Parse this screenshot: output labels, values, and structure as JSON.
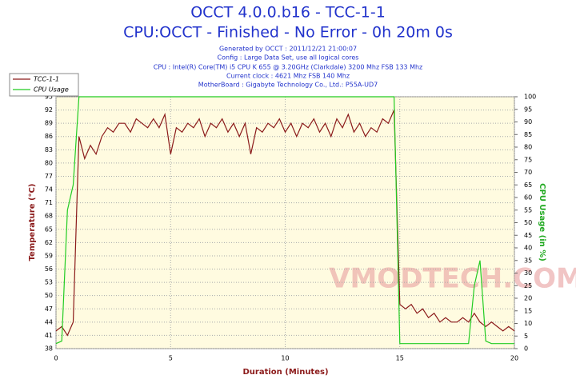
{
  "chart_data": {
    "type": "line",
    "title": "OCCT 4.0.0.b16 - TCC-1-1",
    "subtitle": "CPU:OCCT - Finished - No Error - 0h 20m 0s",
    "info": [
      "Generated by OCCT : 2011/12/21 21:00:07",
      "Config : Large Data Set, use all logical cores",
      "CPU : Intel(R) Core(TM) i5 CPU K 655 @ 3.20GHz (Clarkdale) 3200 Mhz FSB 133 Mhz",
      "Current clock : 4621 Mhz FSB 140 Mhz",
      "MotherBoard : Gigabyte Technology Co., Ltd.: P55A-UD7"
    ],
    "watermark": "VMODTECH.COM",
    "xlabel": "Duration (Minutes)",
    "ylabel": "Temperature (°C)",
    "y2label": "CPU Usage (in %)",
    "x": [
      0,
      0.25,
      0.5,
      0.75,
      1,
      1.25,
      1.5,
      1.75,
      2,
      2.25,
      2.5,
      2.75,
      3,
      3.25,
      3.5,
      3.75,
      4,
      4.25,
      4.5,
      4.75,
      5,
      5.25,
      5.5,
      5.75,
      6,
      6.25,
      6.5,
      6.75,
      7,
      7.25,
      7.5,
      7.75,
      8,
      8.25,
      8.5,
      8.75,
      9,
      9.25,
      9.5,
      9.75,
      10,
      10.25,
      10.5,
      10.75,
      11,
      11.25,
      11.5,
      11.75,
      12,
      12.25,
      12.5,
      12.75,
      13,
      13.25,
      13.5,
      13.75,
      14,
      14.25,
      14.5,
      14.75,
      15,
      15.25,
      15.5,
      15.75,
      16,
      16.25,
      16.5,
      16.75,
      17,
      17.25,
      17.5,
      17.75,
      18,
      18.25,
      18.5,
      18.75,
      19,
      19.25,
      19.5,
      19.75,
      20
    ],
    "series": [
      {
        "name": "TCC-1-1",
        "color": "#8b1a1a",
        "values": [
          42,
          43,
          41,
          44,
          86,
          81,
          84,
          82,
          86,
          88,
          87,
          89,
          89,
          87,
          90,
          89,
          88,
          90,
          88,
          91,
          82,
          88,
          87,
          89,
          88,
          90,
          86,
          89,
          88,
          90,
          87,
          89,
          86,
          89,
          82,
          88,
          87,
          89,
          88,
          90,
          87,
          89,
          86,
          89,
          88,
          90,
          87,
          89,
          86,
          90,
          88,
          91,
          87,
          89,
          86,
          88,
          87,
          90,
          89,
          92,
          48,
          47,
          48,
          46,
          47,
          45,
          46,
          44,
          45,
          44,
          44,
          45,
          44,
          46,
          44,
          43,
          44,
          43,
          42,
          43,
          42
        ]
      },
      {
        "name": "CPU Usage",
        "color": "#22cc22",
        "axis": "y2",
        "values": [
          2,
          3,
          55,
          65,
          100,
          100,
          100,
          100,
          100,
          100,
          100,
          100,
          100,
          100,
          100,
          100,
          100,
          100,
          100,
          100,
          100,
          100,
          100,
          100,
          100,
          100,
          100,
          100,
          100,
          100,
          100,
          100,
          100,
          100,
          100,
          100,
          100,
          100,
          100,
          100,
          100,
          100,
          100,
          100,
          100,
          100,
          100,
          100,
          100,
          100,
          100,
          100,
          100,
          100,
          100,
          100,
          100,
          100,
          100,
          100,
          2,
          2,
          2,
          2,
          2,
          2,
          2,
          2,
          2,
          2,
          2,
          2,
          2,
          25,
          35,
          3,
          2,
          2,
          2,
          2,
          2
        ]
      }
    ],
    "xlim": [
      0,
      20
    ],
    "xticks": [
      0,
      5,
      10,
      15,
      20
    ],
    "ylim": [
      38,
      95
    ],
    "yticks": [
      38,
      41,
      44,
      47,
      50,
      53,
      56,
      59,
      62,
      65,
      68,
      71,
      74,
      77,
      80,
      83,
      86,
      89,
      92,
      95
    ],
    "y2lim": [
      0,
      100
    ],
    "y2ticks": [
      0,
      5,
      10,
      15,
      20,
      25,
      30,
      35,
      40,
      45,
      50,
      55,
      60,
      65,
      70,
      75,
      80,
      85,
      90,
      95,
      100
    ],
    "grid": true,
    "legend": "top-left"
  }
}
